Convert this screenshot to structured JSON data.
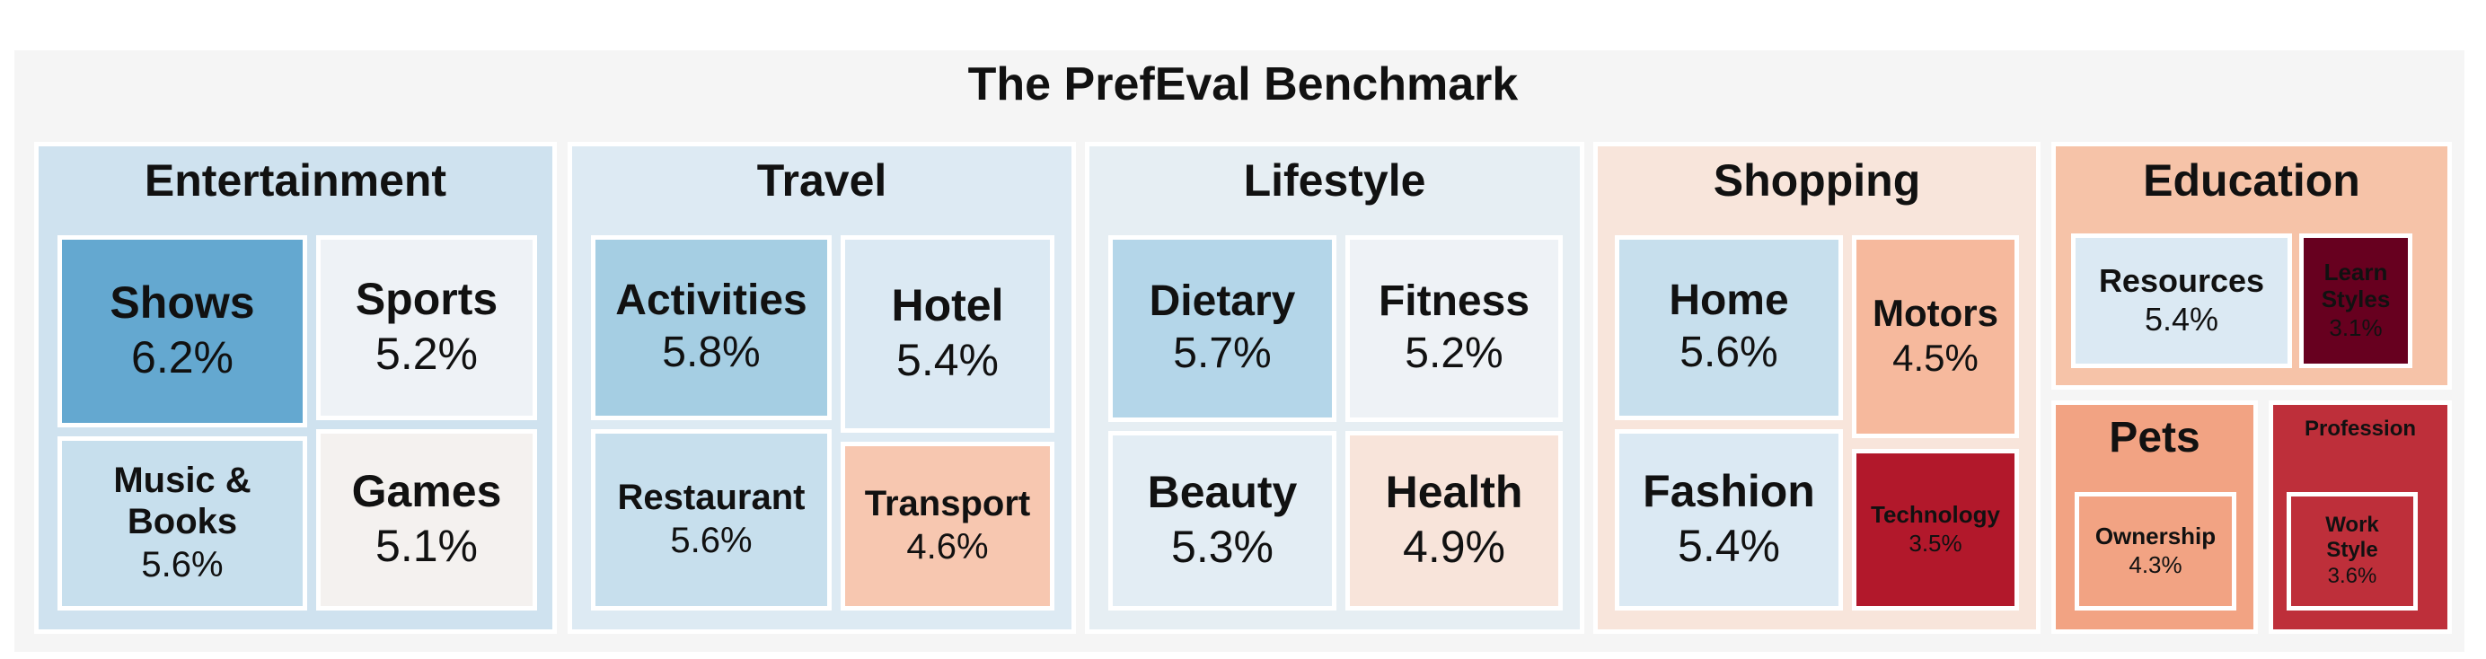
{
  "chart_data": {
    "type": "treemap",
    "title": "The PrefEval Benchmark",
    "groups": [
      {
        "name": "Entertainment",
        "color": "#cfe2ef",
        "items": [
          {
            "name": "Shows",
            "value": 6.2,
            "label": "6.2%",
            "color": "#64a8d0"
          },
          {
            "name": "Sports",
            "value": 5.2,
            "label": "5.2%",
            "color": "#eef2f6"
          },
          {
            "name": "Music & Books",
            "value": 5.6,
            "label": "5.6%",
            "color": "#c7dfed"
          },
          {
            "name": "Games",
            "value": 5.1,
            "label": "5.1%",
            "color": "#f4f1ef"
          }
        ]
      },
      {
        "name": "Travel",
        "color": "#ddeaf3",
        "items": [
          {
            "name": "Activities",
            "value": 5.8,
            "label": "5.8%",
            "color": "#a5cee3"
          },
          {
            "name": "Hotel",
            "value": 5.4,
            "label": "5.4%",
            "color": "#dbe9f3"
          },
          {
            "name": "Restaurant",
            "value": 5.6,
            "label": "5.6%",
            "color": "#c7dfed"
          },
          {
            "name": "Transport",
            "value": 4.6,
            "label": "4.6%",
            "color": "#f7c7b0"
          }
        ]
      },
      {
        "name": "Lifestyle",
        "color": "#e6eef3",
        "items": [
          {
            "name": "Dietary",
            "value": 5.7,
            "label": "5.7%",
            "color": "#b4d6e9"
          },
          {
            "name": "Fitness",
            "value": 5.2,
            "label": "5.2%",
            "color": "#eef2f6"
          },
          {
            "name": "Beauty",
            "value": 5.3,
            "label": "5.3%",
            "color": "#e3edf4"
          },
          {
            "name": "Health",
            "value": 4.9,
            "label": "4.9%",
            "color": "#f8e4da"
          }
        ]
      },
      {
        "name": "Shopping",
        "color": "#f8e5db",
        "items": [
          {
            "name": "Home",
            "value": 5.6,
            "label": "5.6%",
            "color": "#c7dfed"
          },
          {
            "name": "Motors",
            "value": 4.5,
            "label": "4.5%",
            "color": "#f6b99d"
          },
          {
            "name": "Fashion",
            "value": 5.4,
            "label": "5.4%",
            "color": "#dbe9f3"
          },
          {
            "name": "Technology",
            "value": 3.5,
            "label": "3.5%",
            "color": "#b2182b"
          }
        ]
      },
      {
        "name": "Education",
        "color": "#f6c3a8",
        "items": [
          {
            "name": "Resources",
            "value": 5.4,
            "label": "5.4%",
            "color": "#dbe9f3"
          },
          {
            "name": "Learn Styles",
            "value": 3.1,
            "label": "3.1%",
            "color": "#67001f"
          }
        ]
      },
      {
        "name": "Pets",
        "color": "#f2a383",
        "items": [
          {
            "name": "Ownership",
            "value": 4.3,
            "label": "4.3%",
            "color": "#f2a383"
          }
        ]
      },
      {
        "name": "Profession",
        "color": "#be2f3a",
        "items": [
          {
            "name": "Work Style",
            "value": 3.6,
            "label": "3.6%",
            "color": "#be2f3a"
          }
        ]
      }
    ]
  }
}
